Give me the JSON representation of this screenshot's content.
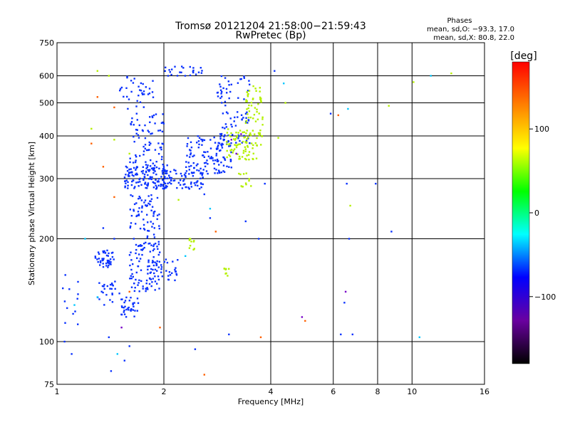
{
  "chart_data": {
    "type": "scatter",
    "title": "Tromsø 20121204 21:58:00−21:59:43",
    "subtitle": "RwPretec (Bp)",
    "xlabel": "Frequency [MHz]",
    "ylabel": "Stationary phase Virtual Height [km]",
    "x_scale": "log",
    "y_scale": "log",
    "xlim": [
      1,
      16
    ],
    "ylim": [
      75,
      750
    ],
    "x_ticks": [
      "1",
      "2",
      "4",
      "6",
      "8",
      "10",
      "16"
    ],
    "y_ticks": [
      "75",
      "100",
      "200",
      "300",
      "400",
      "500",
      "600",
      "750"
    ],
    "x_tick_values": [
      1,
      2,
      4,
      6,
      8,
      10,
      16
    ],
    "y_tick_values": [
      75,
      100,
      200,
      300,
      400,
      500,
      600,
      750
    ],
    "grid": true,
    "stats": {
      "title": "Phases",
      "line_o": "mean, sd,O: −93.3, 17.0",
      "line_x": "mean, sd,X: 80.8, 22.0"
    },
    "colorbar": {
      "label": "[deg]",
      "range": [
        -180,
        180
      ],
      "ticks": [
        "100",
        "0",
        "−100"
      ],
      "tick_values": [
        100,
        0,
        -100
      ],
      "colors": [
        "#000000",
        "#6a00a0",
        "#0000ff",
        "#00ffff",
        "#00ff00",
        "#ffff00",
        "#ff8000",
        "#ff0000"
      ]
    },
    "series": [
      {
        "mode": "o",
        "color": "#0a32ff",
        "clusters": [
          {
            "x": [
              1.28,
              1.45
            ],
            "y": [
              165,
              185
            ],
            "n": 45
          },
          {
            "x": [
              1.3,
              1.5
            ],
            "y": [
              128,
              150
            ],
            "n": 25
          },
          {
            "x": [
              1.5,
              1.7
            ],
            "y": [
              118,
              135
            ],
            "n": 35
          },
          {
            "x": [
              1.6,
              1.95
            ],
            "y": [
              140,
              270
            ],
            "n": 160
          },
          {
            "x": [
              1.55,
              2.05
            ],
            "y": [
              280,
              330
            ],
            "n": 140
          },
          {
            "x": [
              1.6,
              2.0
            ],
            "y": [
              330,
              470
            ],
            "n": 70
          },
          {
            "x": [
              1.5,
              1.9
            ],
            "y": [
              480,
              600
            ],
            "n": 35
          },
          {
            "x": [
              1.8,
              2.2
            ],
            "y": [
              150,
              175
            ],
            "n": 40
          },
          {
            "x": [
              2.0,
              2.6
            ],
            "y": [
              280,
              320
            ],
            "n": 70
          },
          {
            "x": [
              2.3,
              3.1
            ],
            "y": [
              310,
              400
            ],
            "n": 120
          },
          {
            "x": [
              2.8,
              3.5
            ],
            "y": [
              380,
              600
            ],
            "n": 80
          },
          {
            "x": [
              2.0,
              2.6
            ],
            "y": [
              600,
              640
            ],
            "n": 25
          },
          {
            "x": [
              1.02,
              1.15
            ],
            "y": [
              108,
              160
            ],
            "n": 12
          }
        ],
        "points": [
          [
            1.05,
            100
          ],
          [
            1.1,
            92
          ],
          [
            1.4,
            103
          ],
          [
            1.6,
            97
          ],
          [
            1.55,
            88
          ],
          [
            1.42,
            82
          ],
          [
            2.45,
            95
          ],
          [
            4.1,
            620
          ],
          [
            3.7,
            200
          ],
          [
            3.85,
            290
          ],
          [
            6.55,
            290
          ],
          [
            6.65,
            200
          ],
          [
            6.45,
            130
          ],
          [
            7.9,
            290
          ],
          [
            8.75,
            210
          ],
          [
            6.3,
            105
          ],
          [
            6.8,
            105
          ],
          [
            5.9,
            465
          ],
          [
            3.4,
            225
          ],
          [
            2.7,
            230
          ],
          [
            2.6,
            270
          ],
          [
            3.05,
            105
          ],
          [
            1.45,
            200
          ],
          [
            1.35,
            215
          ]
        ]
      },
      {
        "mode": "x",
        "color": "#b4f000",
        "clusters": [
          {
            "x": [
              3.0,
              3.8
            ],
            "y": [
              340,
              420
            ],
            "n": 90
          },
          {
            "x": [
              3.4,
              3.8
            ],
            "y": [
              420,
              560
            ],
            "n": 45
          },
          {
            "x": [
              3.25,
              3.55
            ],
            "y": [
              280,
              330
            ],
            "n": 12
          },
          {
            "x": [
              2.35,
              2.45
            ],
            "y": [
              185,
              210
            ],
            "n": 10
          },
          {
            "x": [
              2.95,
              3.05
            ],
            "y": [
              155,
              165
            ],
            "n": 8
          }
        ],
        "points": [
          [
            4.4,
            500
          ],
          [
            4.2,
            395
          ],
          [
            1.25,
            420
          ],
          [
            1.3,
            620
          ],
          [
            1.4,
            600
          ],
          [
            1.45,
            390
          ],
          [
            1.6,
            355
          ],
          [
            8.6,
            490
          ],
          [
            12.9,
            610
          ],
          [
            10.1,
            575
          ],
          [
            6.7,
            250
          ],
          [
            2.2,
            260
          ]
        ]
      },
      {
        "mode": "other",
        "color": "#ff6000",
        "points": [
          [
            1.3,
            520
          ],
          [
            1.35,
            325
          ],
          [
            1.45,
            265
          ],
          [
            5.0,
            115
          ],
          [
            2.6,
            80
          ],
          [
            3.75,
            103
          ],
          [
            1.95,
            110
          ],
          [
            1.45,
            485
          ],
          [
            2.8,
            210
          ],
          [
            6.2,
            460
          ],
          [
            1.25,
            380
          ],
          [
            1.6,
            140
          ]
        ]
      },
      {
        "mode": "other",
        "color": "#00c8ff",
        "points": [
          [
            1.12,
            128
          ],
          [
            1.3,
            135
          ],
          [
            4.35,
            570
          ],
          [
            6.6,
            480
          ],
          [
            11.3,
            600
          ],
          [
            10.5,
            103
          ],
          [
            2.7,
            245
          ],
          [
            1.48,
            92
          ],
          [
            2.3,
            178
          ],
          [
            1.2,
            200
          ]
        ]
      },
      {
        "mode": "other",
        "color": "#7800c8",
        "points": [
          [
            3.2,
            355
          ],
          [
            3.1,
            390
          ],
          [
            3.3,
            405
          ],
          [
            1.52,
            110
          ],
          [
            4.9,
            118
          ],
          [
            6.5,
            140
          ]
        ]
      }
    ]
  }
}
